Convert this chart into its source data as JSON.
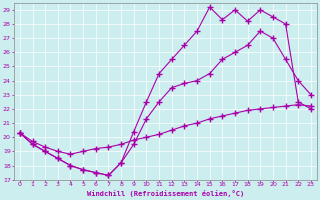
{
  "xlabel": "Windchill (Refroidissement éolien,°C)",
  "bg_color": "#cceeee",
  "line_color": "#aa00aa",
  "xlim": [
    -0.5,
    23.5
  ],
  "ylim": [
    17,
    29.5
  ],
  "yticks": [
    17,
    18,
    19,
    20,
    21,
    22,
    23,
    24,
    25,
    26,
    27,
    28,
    29
  ],
  "xticks": [
    0,
    1,
    2,
    3,
    4,
    5,
    6,
    7,
    8,
    9,
    10,
    11,
    12,
    13,
    14,
    15,
    16,
    17,
    18,
    19,
    20,
    21,
    22,
    23
  ],
  "line1_x": [
    0,
    1,
    2,
    3,
    4,
    5,
    6,
    7,
    8,
    9,
    10,
    11,
    12,
    13,
    14,
    15,
    16,
    17,
    18,
    19,
    20,
    21,
    22,
    23
  ],
  "line1_y": [
    20.3,
    19.7,
    19.3,
    19.0,
    18.8,
    19.0,
    19.2,
    19.3,
    19.5,
    19.8,
    20.0,
    20.2,
    20.5,
    20.8,
    21.0,
    21.3,
    21.5,
    21.7,
    21.9,
    22.0,
    22.1,
    22.2,
    22.3,
    22.2
  ],
  "line2_x": [
    0,
    1,
    2,
    3,
    4,
    5,
    6,
    7,
    8,
    9,
    10,
    11,
    12,
    13,
    14,
    15,
    16,
    17,
    18,
    19,
    20,
    21,
    22,
    23
  ],
  "line2_y": [
    20.3,
    19.5,
    19.0,
    18.5,
    18.0,
    17.7,
    17.5,
    17.3,
    18.2,
    19.5,
    21.3,
    22.5,
    23.5,
    23.8,
    24.0,
    24.5,
    25.5,
    26.0,
    26.5,
    27.5,
    27.0,
    25.5,
    24.0,
    23.0
  ],
  "line3_x": [
    0,
    1,
    2,
    3,
    4,
    5,
    6,
    7,
    8,
    9,
    10,
    11,
    12,
    13,
    14,
    15,
    16,
    17,
    18,
    19,
    20,
    21,
    22,
    23
  ],
  "line3_y": [
    20.3,
    19.5,
    19.0,
    18.5,
    18.0,
    17.7,
    17.5,
    17.3,
    18.2,
    20.4,
    22.5,
    24.5,
    25.5,
    26.5,
    27.5,
    29.2,
    28.3,
    29.0,
    28.2,
    29.0,
    28.5,
    28.0,
    22.5,
    22.0
  ]
}
